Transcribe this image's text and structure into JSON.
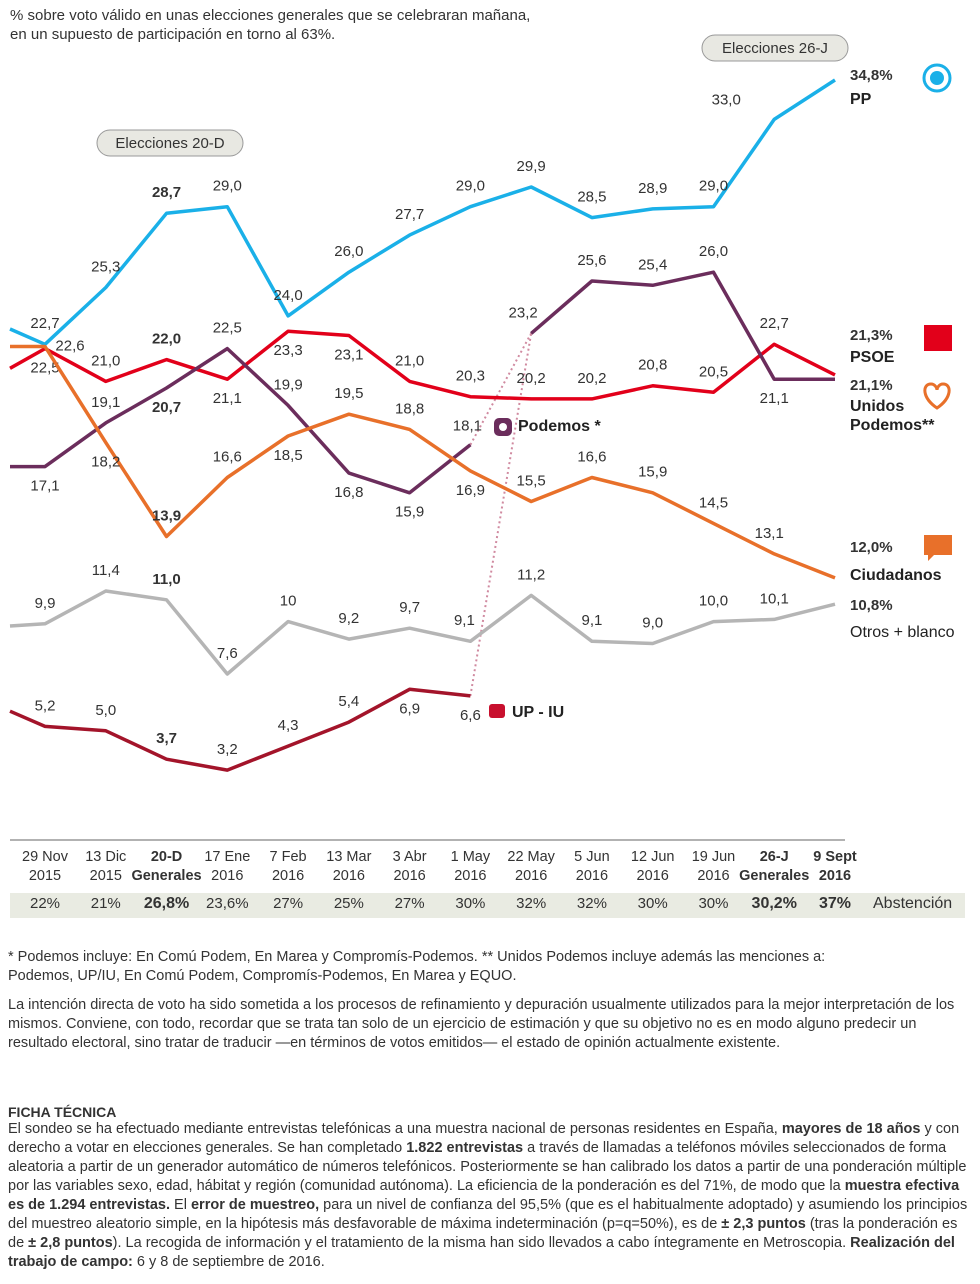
{
  "chart_data": {
    "type": "line",
    "subtitle": "% sobre voto válido en unas elecciones generales que se celebraran mañana,\nen un supuesto de participación en torno al 63%.",
    "categories": [
      null,
      "29 Nov\n2015",
      "13 Dic\n2015",
      "20-D\nGenerales",
      "17 Ene\n2016",
      "7 Feb\n2016",
      "13 Mar\n2016",
      "3 Abr\n2016",
      "1 May\n2016",
      "22 May\n2016",
      "5 Jun\n2016",
      "12 Jun\n2016",
      "19 Jun\n2016",
      "26-J\nGenerales",
      "9 Sept\n2016"
    ],
    "ylim": [
      0,
      37
    ],
    "series": [
      {
        "name": "PP",
        "color": "#1ab0e8",
        "values": [
          23.4,
          22.7,
          25.3,
          28.7,
          29.0,
          24.0,
          26.0,
          27.7,
          29.0,
          29.9,
          28.5,
          28.9,
          29.0,
          33.0,
          34.8
        ],
        "value_labels": [
          null,
          "22,7",
          "25,3",
          "28,7",
          "29,0",
          "24,0",
          "26,0",
          "27,7",
          "29,0",
          "29,9",
          "28,5",
          "28,9",
          "29,0",
          "33,0",
          "34,8%"
        ]
      },
      {
        "name": "PSOE",
        "color": "#e2001a",
        "values": [
          21.6,
          22.5,
          21.0,
          22.0,
          21.1,
          23.3,
          23.1,
          21.0,
          20.3,
          20.2,
          20.2,
          20.8,
          20.5,
          22.7,
          21.3
        ],
        "value_labels": [
          null,
          "22,5",
          "21,0",
          "22,0",
          "21,1",
          "23,3",
          "23,1",
          "21,0",
          "20,3",
          "20,2",
          "20,2",
          "20,8",
          "20,5",
          "22,7",
          "21,3%"
        ]
      },
      {
        "name": "Podemos *",
        "color": "#6b2d5c",
        "values": [
          17.1,
          17.1,
          19.1,
          20.7,
          22.5,
          19.9,
          16.8,
          15.9,
          18.1,
          null,
          null,
          null,
          null,
          null,
          null
        ],
        "value_labels": [
          null,
          "17,1",
          "19,1",
          "20,7",
          "22,5",
          "19,9",
          "16,8",
          "15,9",
          "18,1",
          null,
          null,
          null,
          null,
          null,
          null
        ]
      },
      {
        "name": "Unidos Podemos**",
        "color": "#6b2d5c",
        "values": [
          null,
          null,
          null,
          null,
          null,
          null,
          null,
          null,
          null,
          23.2,
          25.6,
          25.4,
          26.0,
          21.1,
          21.1
        ],
        "value_labels": [
          null,
          null,
          null,
          null,
          null,
          null,
          null,
          null,
          null,
          "23,2",
          "25,6",
          "25,4",
          "26,0",
          "21,1",
          "21,1%"
        ]
      },
      {
        "name": "Ciudadanos",
        "color": "#e8702a",
        "values": [
          22.6,
          22.6,
          18.2,
          13.9,
          16.6,
          18.5,
          19.5,
          18.8,
          16.9,
          15.5,
          16.6,
          15.9,
          14.5,
          13.1,
          12.0
        ],
        "value_labels": [
          null,
          "22,6",
          "18,2",
          "13,9",
          "16,6",
          "18,5",
          "19,5",
          "18,8",
          "16,9",
          "15,5",
          "16,6",
          "15,9",
          "14,5",
          "13,1",
          "12,0%"
        ]
      },
      {
        "name": "Otros + blanco",
        "color": "#b5b5b5",
        "values": [
          9.8,
          9.9,
          11.4,
          11.0,
          7.6,
          10,
          9.2,
          9.7,
          9.1,
          11.2,
          9.1,
          9.0,
          10.0,
          10.1,
          10.8
        ],
        "value_labels": [
          null,
          "9,9",
          "11,4",
          "11,0",
          "7,6",
          "10",
          "9,2",
          "9,7",
          "9,1",
          "11,2",
          "9,1",
          "9,0",
          "10,0",
          "10,1",
          "10,8%"
        ]
      },
      {
        "name": "UP - IU",
        "color": "#a3142a",
        "values": [
          5.9,
          5.2,
          5.0,
          3.7,
          3.2,
          4.3,
          5.4,
          6.9,
          6.6,
          null,
          null,
          null,
          null,
          null,
          null
        ],
        "value_labels": [
          null,
          "5,2",
          "5,0",
          "3,7",
          "3,2",
          "4,3",
          "5,4",
          "6,9",
          "6,6",
          null,
          null,
          null,
          null,
          null,
          null
        ]
      }
    ],
    "annotations": [
      "Elecciones 20-D",
      "Elecciones 26-J"
    ],
    "abstention": {
      "label": "Abstención",
      "values": [
        null,
        22,
        21,
        26.8,
        23.6,
        27,
        25,
        27,
        30,
        32,
        32,
        30,
        30,
        30.2,
        37
      ],
      "value_labels": [
        null,
        "22%",
        "21%",
        "26,8%",
        "23,6%",
        "27%",
        "25%",
        "27%",
        "30%",
        "32%",
        "32%",
        "30%",
        "30%",
        "30,2%",
        "37%"
      ]
    }
  },
  "notes": "* Podemos incluye: En Comú Podem, En Marea y Compromís-Podemos.  ** Unidos Podemos incluye además las menciones a: Podemos, UP/IU, En Comú Podem, Compromís-Podemos, En Marea y EQUO.",
  "disclaimer": "La intención directa de voto ha sido sometida a los procesos de refinamiento y depuración usualmente utilizados para la mejor interpretación de los mismos. Conviene, con todo, recordar que se trata tan solo de un ejercicio de estimación y que su objetivo no es en modo alguno predecir un resultado electoral, sino tratar de traducir —en términos de votos emitidos— el estado de opinión actualmente existente.",
  "technical_sheet": {
    "title": "FICHA TÉCNICA",
    "body": [
      {
        "text": "El sondeo se ha efectuado mediante entrevistas telefónicas a una muestra nacional de personas residentes en España, "
      },
      {
        "text": "mayores de 18 años",
        "bold": true
      },
      {
        "text": " y con derecho a votar en elecciones generales. Se han completado "
      },
      {
        "text": "1.822 entrevistas",
        "bold": true
      },
      {
        "text": " a través de llamadas a teléfonos móviles seleccionados de forma aleatoria a partir de un generador automático de números telefónicos. Posteriormente se han calibrado los datos a partir de una ponderación múltiple por las variables sexo, edad, hábitat y región (comunidad autónoma). La eficiencia de la ponderación es del 71%, de modo que la "
      },
      {
        "text": "muestra efectiva es de 1.294 entrevistas.",
        "bold": true
      },
      {
        "text": " El "
      },
      {
        "text": "error de muestreo,",
        "bold": true
      },
      {
        "text": " para un nivel de confianza del 95,5% (que es el habitualmente adoptado) y asumiendo los principios del muestreo aleatorio simple, en la hipótesis más desfavorable de máxima indeterminación (p=q=50%), es de "
      },
      {
        "text": "± 2,3 puntos",
        "bold": true
      },
      {
        "text": " (tras la ponderación es de "
      },
      {
        "text": "± 2,8 puntos",
        "bold": true
      },
      {
        "text": "). La recogida de información y el tratamiento de la misma han sido llevados a cabo íntegramente en Metroscopia. "
      },
      {
        "text": "Realización del trabajo de campo:",
        "bold": true
      },
      {
        "text": " 6 y 8 de septiembre de 2016."
      }
    ]
  }
}
